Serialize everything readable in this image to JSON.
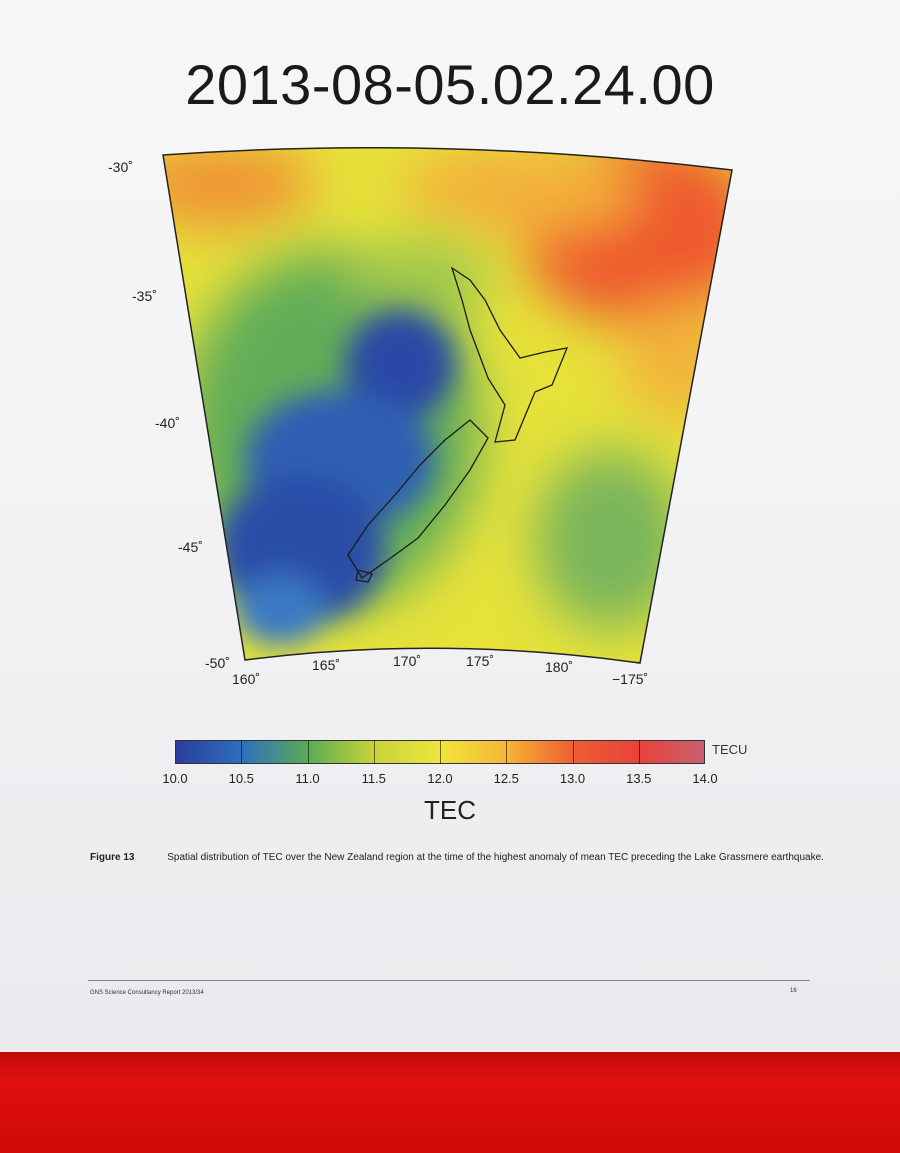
{
  "title": "2013-08-05.02.24.00",
  "map": {
    "lat_labels": [
      "-30˚",
      "-35˚",
      "-40˚",
      "-45˚",
      "-50˚"
    ],
    "lon_labels": [
      "160˚",
      "165˚",
      "170˚",
      "175˚",
      "180˚",
      "−175˚"
    ]
  },
  "colorbar": {
    "labels": [
      "10.0",
      "10.5",
      "11.0",
      "11.5",
      "12.0",
      "12.5",
      "13.0",
      "13.5",
      "14.0"
    ],
    "unit": "TECU",
    "title": "TEC",
    "colors": [
      "#2a3e9c",
      "#2e6fc0",
      "#5bab55",
      "#c7d33a",
      "#f0e63a",
      "#f6b636",
      "#ee6032",
      "#e84238",
      "#c86070"
    ]
  },
  "caption": {
    "label": "Figure 13",
    "text": "Spatial distribution of TEC over the New Zealand region at the time of the highest anomaly of mean TEC preceding the Lake Grassmere earthquake."
  },
  "footer": {
    "left": "GNS Science Consultancy Report 2013/34",
    "right": "16"
  }
}
